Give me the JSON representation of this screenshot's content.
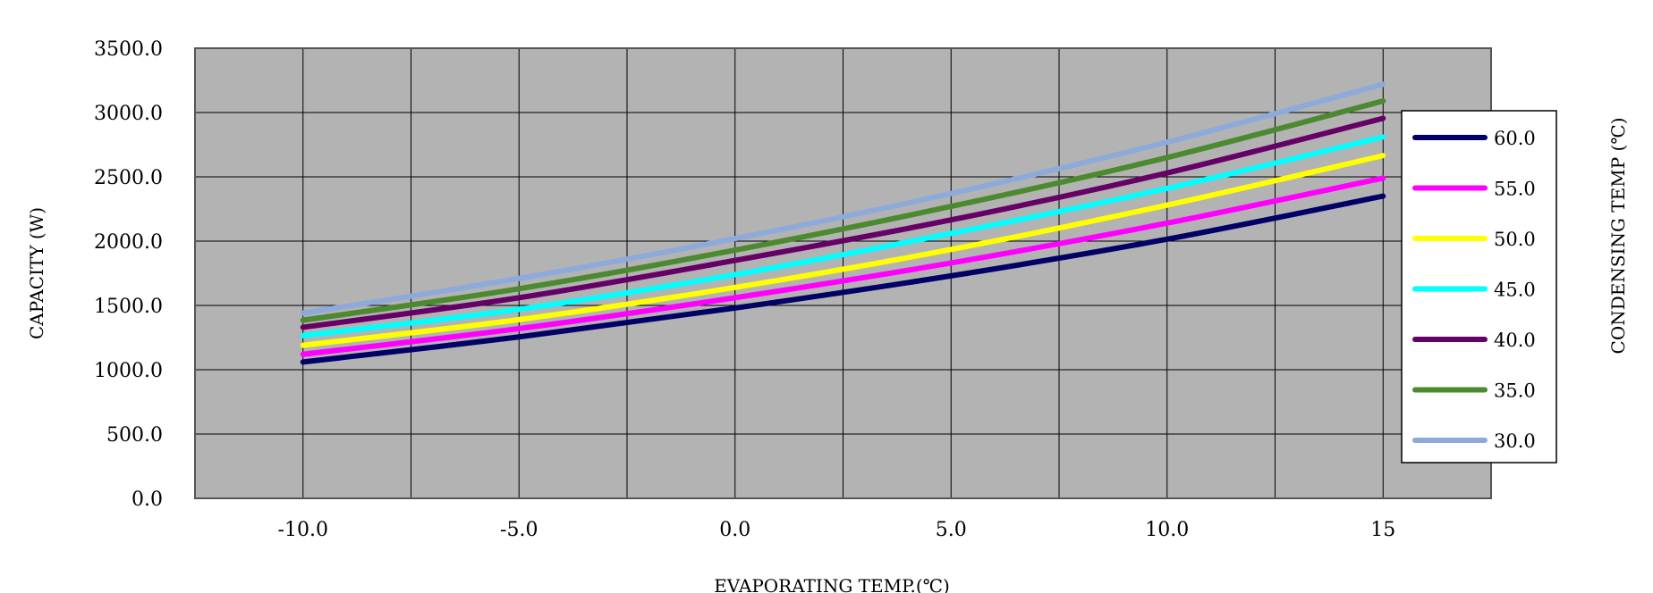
{
  "chart_data": {
    "type": "line",
    "title": "",
    "xlabel": "EVAPORATING TEMP.(℃)",
    "ylabel": "CAPACITY (W)",
    "legend_title": "CONDENSING TEMP (℃)",
    "legend_position": "right",
    "grid": true,
    "plot_background": "#b3b3b3",
    "xlim": [
      -12.5,
      17.5
    ],
    "ylim": [
      0,
      3500
    ],
    "xticks": [
      -10,
      -5,
      0,
      5,
      10,
      15
    ],
    "xtick_labels": [
      "-10.0",
      "-5.0",
      "0.0",
      "5.0",
      "10.0",
      "15"
    ],
    "yticks": [
      0,
      500,
      1000,
      1500,
      2000,
      2500,
      3000,
      3500
    ],
    "ytick_labels": [
      "0.0",
      "500.0",
      "1000.0",
      "1500.0",
      "2000.0",
      "2500.0",
      "3000.0",
      "3500.0"
    ],
    "x": [
      -10,
      -5,
      0,
      5,
      10,
      15
    ],
    "series": [
      {
        "name": "60.0",
        "color": "#000066",
        "values": [
          1060,
          1255,
          1480,
          1730,
          2015,
          2350
        ]
      },
      {
        "name": "55.0",
        "color": "#ff00ff",
        "values": [
          1120,
          1320,
          1560,
          1830,
          2140,
          2490
        ]
      },
      {
        "name": "50.0",
        "color": "#ffff00",
        "values": [
          1190,
          1390,
          1640,
          1935,
          2280,
          2665
        ]
      },
      {
        "name": "45.0",
        "color": "#00ffff",
        "values": [
          1265,
          1470,
          1740,
          2060,
          2410,
          2810
        ]
      },
      {
        "name": "40.0",
        "color": "#660066",
        "values": [
          1330,
          1560,
          1850,
          2165,
          2530,
          2955
        ]
      },
      {
        "name": "35.0",
        "color": "#4b8a2e",
        "values": [
          1385,
          1630,
          1930,
          2270,
          2650,
          3090
        ]
      },
      {
        "name": "30.0",
        "color": "#8eaadb",
        "values": [
          1440,
          1710,
          2020,
          2370,
          2770,
          3220
        ]
      }
    ]
  }
}
